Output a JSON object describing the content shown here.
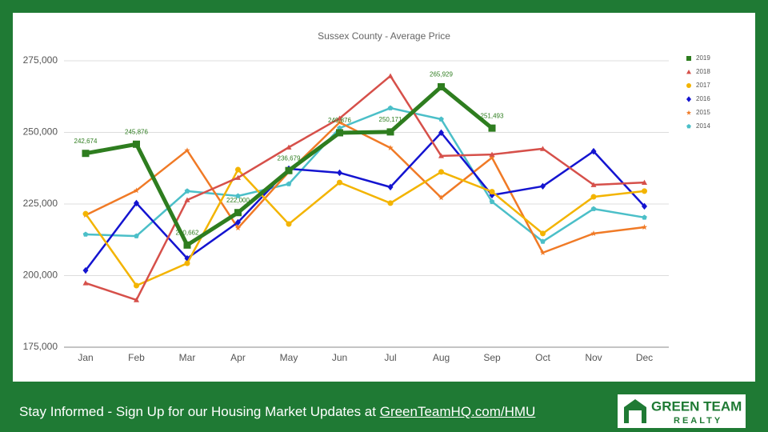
{
  "chart_data": {
    "type": "line",
    "title": "Sussex County - Average Price",
    "categories": [
      "Jan",
      "Feb",
      "Mar",
      "Apr",
      "May",
      "Jun",
      "Jul",
      "Aug",
      "Sep",
      "Oct",
      "Nov",
      "Dec"
    ],
    "ylim": [
      175000,
      275000
    ],
    "yticks": [
      {
        "value": 175000,
        "label": "175,000"
      },
      {
        "value": 200000,
        "label": "200,000"
      },
      {
        "value": 225000,
        "label": "225,000"
      },
      {
        "value": 250000,
        "label": "250,000"
      },
      {
        "value": 275000,
        "label": "275,000"
      }
    ],
    "grid": true,
    "legend": "right",
    "series": [
      {
        "name": "2019",
        "color": "#2e7d1f",
        "marker": "square",
        "values": [
          242674,
          245876,
          210662,
          222000,
          236679,
          249876,
          250171,
          265929,
          251493,
          null,
          null,
          null
        ],
        "value_labels": [
          "242,674",
          "245,876",
          "210,662",
          "222,000",
          "236,679",
          "249,876",
          "250,171",
          "265,929",
          "251,493",
          null,
          null,
          null
        ]
      },
      {
        "name": "2018",
        "color": "#d6504a",
        "marker": "triangle",
        "values": [
          197400,
          191500,
          226400,
          234200,
          244800,
          254900,
          269700,
          241800,
          242300,
          244300,
          231700,
          232500
        ]
      },
      {
        "name": "2017",
        "color": "#f3b400",
        "marker": "circle",
        "values": [
          221600,
          196500,
          204300,
          237000,
          218000,
          232500,
          225300,
          236200,
          229300,
          214700,
          227500,
          229500
        ]
      },
      {
        "name": "2016",
        "color": "#1414d0",
        "marker": "diamond",
        "values": [
          201800,
          225300,
          206000,
          218600,
          237300,
          235900,
          230900,
          249900,
          228100,
          231200,
          243400,
          224200
        ]
      },
      {
        "name": "2015",
        "color": "#f07a26",
        "marker": "star",
        "values": [
          221100,
          229700,
          243700,
          216600,
          236200,
          253500,
          244600,
          227200,
          241200,
          208000,
          214700,
          216900
        ]
      },
      {
        "name": "2014",
        "color": "#4bbfc8",
        "marker": "pentagon",
        "values": [
          214400,
          213800,
          229500,
          227800,
          232000,
          251500,
          258500,
          254600,
          225800,
          211900,
          223300,
          220300
        ]
      }
    ]
  },
  "footer": {
    "text": "Stay Informed - Sign Up for our Housing Market Updates at ",
    "link": "GreenTeamHQ.com/HMU"
  },
  "logo": {
    "line1": "GREEN TEAM",
    "line2": "REALTY"
  }
}
